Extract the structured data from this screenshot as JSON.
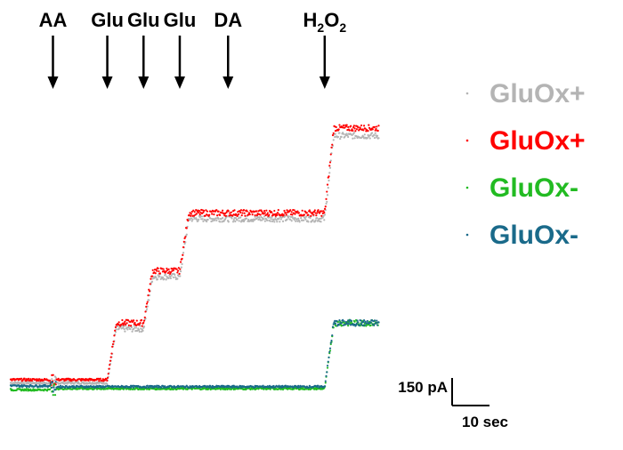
{
  "chart_data": {
    "type": "line",
    "title": "",
    "xlabel": "",
    "ylabel": "",
    "y_unit": "pA",
    "x_unit": "sec",
    "xlim": [
      0,
      135
    ],
    "ylim": [
      -25,
      1000
    ],
    "grid": false,
    "legend_position": "right",
    "marker_style": "small dots",
    "additions": [
      {
        "label": "AA",
        "t": 14
      },
      {
        "label": "Glu",
        "t": 32
      },
      {
        "label": "Glu",
        "t": 44
      },
      {
        "label": "Glu",
        "t": 56
      },
      {
        "label": "DA",
        "t": 72
      },
      {
        "label": "H",
        "sub1": "2",
        "mid": "O",
        "sub2": "2",
        "t": 104
      }
    ],
    "series": [
      {
        "name": "GluOx+",
        "color": "#b4b4b4",
        "steps": [
          [
            0,
            20
          ],
          [
            32,
            160
          ],
          [
            44,
            295
          ],
          [
            56,
            445
          ],
          [
            104,
            660
          ],
          [
            122,
            660
          ]
        ]
      },
      {
        "name": "GluOx+",
        "color": "#ff0000",
        "steps": [
          [
            0,
            28
          ],
          [
            32,
            175
          ],
          [
            44,
            310
          ],
          [
            56,
            460
          ],
          [
            104,
            680
          ],
          [
            122,
            680
          ]
        ]
      },
      {
        "name": "GluOx-",
        "color": "#22bb22",
        "steps": [
          [
            0,
            2
          ],
          [
            14,
            5
          ],
          [
            104,
            175
          ],
          [
            122,
            175
          ]
        ]
      },
      {
        "name": "GluOx-",
        "color": "#1a6a8a",
        "steps": [
          [
            0,
            12
          ],
          [
            14,
            10
          ],
          [
            104,
            175
          ],
          [
            122,
            175
          ]
        ]
      }
    ],
    "scale_bar": {
      "y_value": 150,
      "y_label": "150 pA",
      "x_value": 10,
      "x_label": "10 sec"
    }
  }
}
